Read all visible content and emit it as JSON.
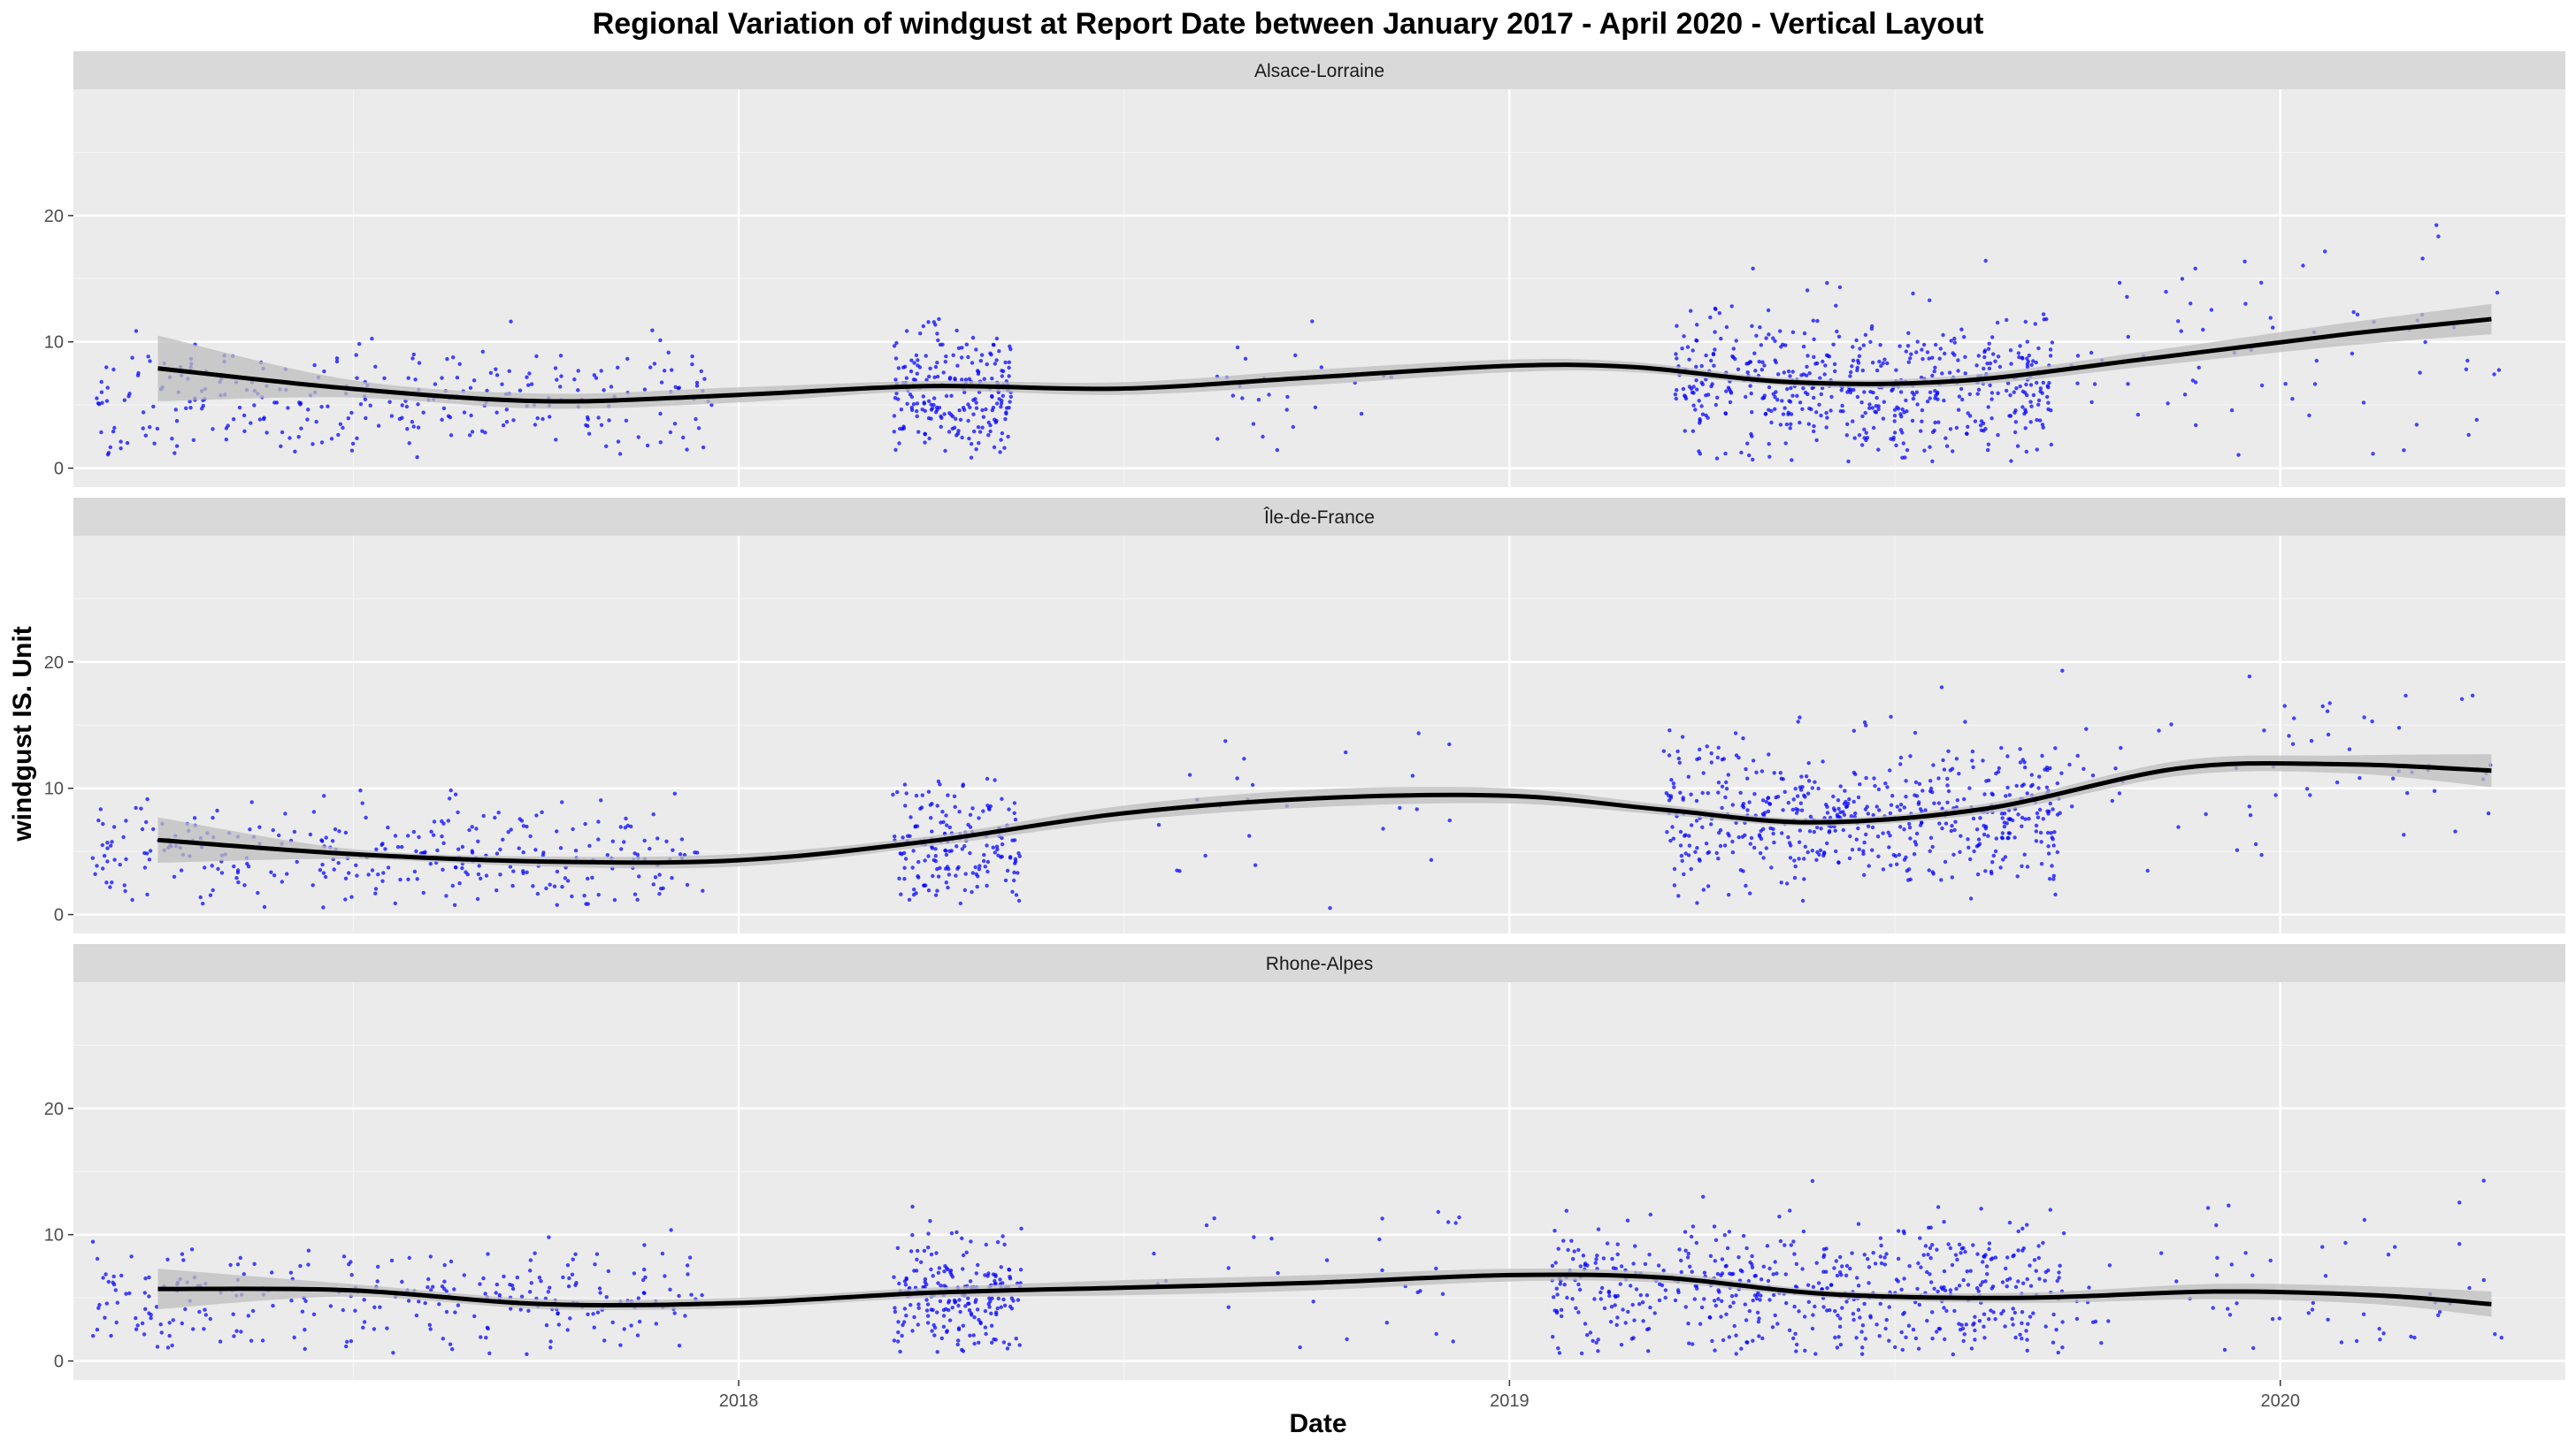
{
  "chart_data": {
    "type": "scatter",
    "title": "Regional Variation of  windgust  at Report Date between January 2017 - April 2020 - Vertical Layout",
    "xlabel": "Date",
    "ylabel": "windgust  IS. Unit",
    "x_ticks": [
      "2018",
      "2019",
      "2020"
    ],
    "x_tick_values": [
      "2018-01-01",
      "2019-01-01",
      "2020-01-01"
    ],
    "xlim": [
      "2017-02-20",
      "2020-05-15"
    ],
    "y_ticks": [
      0,
      10,
      20
    ],
    "ylim": [
      -1.5,
      30
    ],
    "grid": true,
    "point_color": "#0000ff",
    "smooth_color": "#000000",
    "band_color": "#bdbdbd",
    "panels": [
      {
        "strip": "Alsace-Lorraine",
        "smooth": [
          {
            "x": "2017-04-01",
            "y": 7.9,
            "lo": 5.3,
            "hi": 10.5
          },
          {
            "x": "2017-07-01",
            "y": 6.3,
            "lo": 5.6,
            "hi": 7.0
          },
          {
            "x": "2017-10-01",
            "y": 5.3,
            "lo": 4.7,
            "hi": 5.9
          },
          {
            "x": "2018-01-01",
            "y": 5.8,
            "lo": 5.2,
            "hi": 6.4
          },
          {
            "x": "2018-04-01",
            "y": 6.5,
            "lo": 6.1,
            "hi": 6.9
          },
          {
            "x": "2018-07-01",
            "y": 6.3,
            "lo": 5.8,
            "hi": 6.8
          },
          {
            "x": "2018-10-01",
            "y": 7.2,
            "lo": 6.6,
            "hi": 7.8
          },
          {
            "x": "2019-01-01",
            "y": 8.1,
            "lo": 7.6,
            "hi": 8.6
          },
          {
            "x": "2019-03-01",
            "y": 8.0,
            "lo": 7.6,
            "hi": 8.4
          },
          {
            "x": "2019-05-15",
            "y": 6.8,
            "lo": 6.5,
            "hi": 7.1
          },
          {
            "x": "2019-08-01",
            "y": 6.9,
            "lo": 6.5,
            "hi": 7.3
          },
          {
            "x": "2019-11-01",
            "y": 8.7,
            "lo": 8.1,
            "hi": 9.3
          },
          {
            "x": "2020-02-01",
            "y": 10.6,
            "lo": 9.7,
            "hi": 11.5
          },
          {
            "x": "2020-04-10",
            "y": 11.8,
            "lo": 10.6,
            "hi": 13.0
          }
        ],
        "clusters": [
          {
            "start": "2017-03-01",
            "end": "2017-12-20",
            "n": 300,
            "mean": 5.5,
            "sd": 2.4
          },
          {
            "start": "2018-03-15",
            "end": "2018-05-10",
            "n": 230,
            "mean": 6.0,
            "sd": 2.6
          },
          {
            "start": "2018-08-15",
            "end": "2018-11-15",
            "n": 25,
            "mean": 6.8,
            "sd": 2.8
          },
          {
            "start": "2019-03-20",
            "end": "2019-09-15",
            "n": 560,
            "mean": 6.4,
            "sd": 3.0
          },
          {
            "start": "2019-09-15",
            "end": "2020-04-15",
            "n": 70,
            "mean": 9.5,
            "sd": 4.0
          }
        ]
      },
      {
        "strip": "Île-de-France",
        "smooth": [
          {
            "x": "2017-04-01",
            "y": 5.9,
            "lo": 4.1,
            "hi": 7.7
          },
          {
            "x": "2017-07-01",
            "y": 4.8,
            "lo": 4.4,
            "hi": 5.2
          },
          {
            "x": "2017-10-01",
            "y": 4.2,
            "lo": 3.8,
            "hi": 4.6
          },
          {
            "x": "2018-01-01",
            "y": 4.3,
            "lo": 3.8,
            "hi": 4.8
          },
          {
            "x": "2018-04-01",
            "y": 5.8,
            "lo": 5.4,
            "hi": 6.2
          },
          {
            "x": "2018-07-01",
            "y": 8.0,
            "lo": 7.4,
            "hi": 8.6
          },
          {
            "x": "2018-10-01",
            "y": 9.2,
            "lo": 8.5,
            "hi": 9.9
          },
          {
            "x": "2019-01-01",
            "y": 9.4,
            "lo": 8.8,
            "hi": 10.0
          },
          {
            "x": "2019-03-15",
            "y": 8.3,
            "lo": 7.9,
            "hi": 8.7
          },
          {
            "x": "2019-05-25",
            "y": 7.3,
            "lo": 7.0,
            "hi": 7.6
          },
          {
            "x": "2019-08-15",
            "y": 8.4,
            "lo": 8.0,
            "hi": 8.8
          },
          {
            "x": "2019-11-15",
            "y": 11.6,
            "lo": 11.0,
            "hi": 12.2
          },
          {
            "x": "2020-02-01",
            "y": 11.9,
            "lo": 11.2,
            "hi": 12.6
          },
          {
            "x": "2020-04-10",
            "y": 11.4,
            "lo": 10.1,
            "hi": 12.7
          }
        ],
        "clusters": [
          {
            "start": "2017-03-01",
            "end": "2017-12-15",
            "n": 320,
            "mean": 4.6,
            "sd": 1.9
          },
          {
            "start": "2018-03-15",
            "end": "2018-05-15",
            "n": 180,
            "mean": 5.6,
            "sd": 2.3
          },
          {
            "start": "2018-07-15",
            "end": "2018-12-10",
            "n": 25,
            "mean": 8.5,
            "sd": 3.0
          },
          {
            "start": "2019-03-15",
            "end": "2019-09-20",
            "n": 560,
            "mean": 8.0,
            "sd": 2.8
          },
          {
            "start": "2019-09-20",
            "end": "2020-04-15",
            "n": 60,
            "mean": 11.5,
            "sd": 3.5
          }
        ]
      },
      {
        "strip": "Rhone-Alpes",
        "smooth": [
          {
            "x": "2017-04-01",
            "y": 5.7,
            "lo": 4.1,
            "hi": 7.3
          },
          {
            "x": "2017-07-01",
            "y": 5.6,
            "lo": 5.1,
            "hi": 6.1
          },
          {
            "x": "2017-10-01",
            "y": 4.5,
            "lo": 4.1,
            "hi": 4.9
          },
          {
            "x": "2018-01-01",
            "y": 4.6,
            "lo": 4.2,
            "hi": 5.0
          },
          {
            "x": "2018-04-01",
            "y": 5.4,
            "lo": 5.0,
            "hi": 5.8
          },
          {
            "x": "2018-07-01",
            "y": 5.8,
            "lo": 5.2,
            "hi": 6.4
          },
          {
            "x": "2018-10-01",
            "y": 6.2,
            "lo": 5.6,
            "hi": 6.8
          },
          {
            "x": "2019-01-01",
            "y": 6.8,
            "lo": 6.3,
            "hi": 7.3
          },
          {
            "x": "2019-03-15",
            "y": 6.6,
            "lo": 6.2,
            "hi": 7.0
          },
          {
            "x": "2019-06-01",
            "y": 5.3,
            "lo": 5.0,
            "hi": 5.6
          },
          {
            "x": "2019-09-01",
            "y": 5.0,
            "lo": 4.6,
            "hi": 5.4
          },
          {
            "x": "2019-12-01",
            "y": 5.5,
            "lo": 4.9,
            "hi": 6.1
          },
          {
            "x": "2020-02-15",
            "y": 5.2,
            "lo": 4.5,
            "hi": 5.9
          },
          {
            "x": "2020-04-10",
            "y": 4.5,
            "lo": 3.5,
            "hi": 5.5
          }
        ],
        "clusters": [
          {
            "start": "2017-03-01",
            "end": "2017-12-15",
            "n": 280,
            "mean": 5.0,
            "sd": 2.2
          },
          {
            "start": "2018-03-15",
            "end": "2018-05-15",
            "n": 220,
            "mean": 5.3,
            "sd": 2.3
          },
          {
            "start": "2018-07-15",
            "end": "2018-12-20",
            "n": 30,
            "mean": 6.5,
            "sd": 3.5
          },
          {
            "start": "2019-01-20",
            "end": "2019-09-20",
            "n": 560,
            "mean": 5.5,
            "sd": 2.8
          },
          {
            "start": "2019-09-20",
            "end": "2020-04-15",
            "n": 60,
            "mean": 5.5,
            "sd": 3.5
          }
        ]
      }
    ]
  }
}
